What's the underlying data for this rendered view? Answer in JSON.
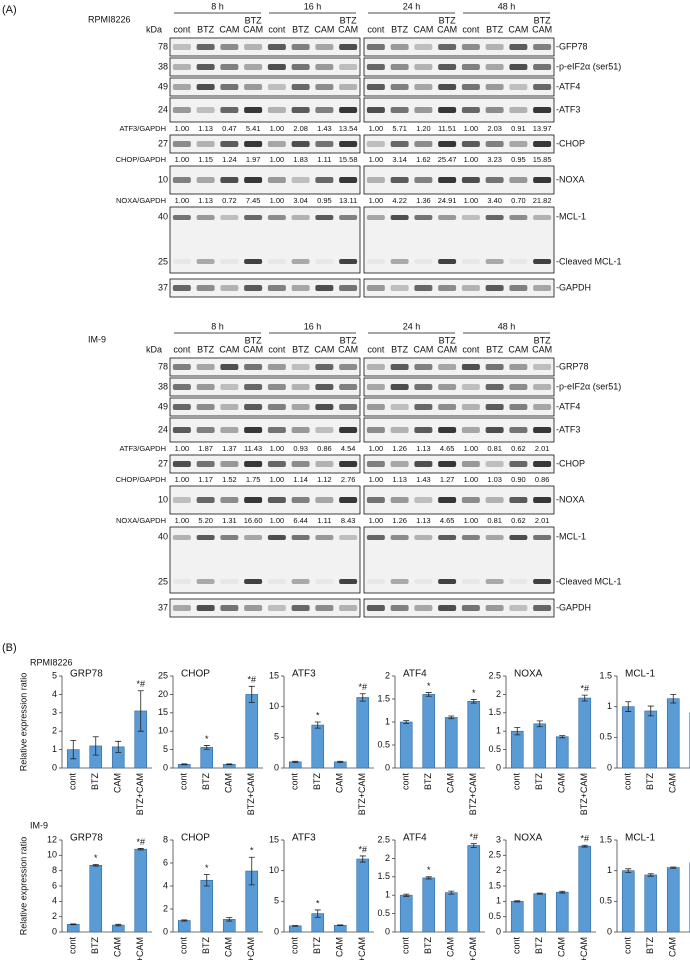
{
  "panel_a": {
    "label": "(A)",
    "kda": "kDa",
    "blocks": [
      {
        "cell_line": "RPMI8226",
        "time_points": [
          "8 h",
          "16 h",
          "24 h",
          "48 h"
        ],
        "lanes": [
          [
            "cont"
          ],
          [
            "BTZ"
          ],
          [
            "CAM"
          ],
          [
            "BTZ",
            "CAM"
          ]
        ],
        "rows": [
          {
            "markers": [
              "78"
            ],
            "labels": [
              "-GFP78"
            ]
          },
          {
            "markers": [
              "38"
            ],
            "labels": [
              "-p-eIF2α (ser51)"
            ]
          },
          {
            "markers": [
              "49"
            ],
            "labels": [
              "-ATF4"
            ]
          },
          {
            "markers": [
              "24"
            ],
            "labels": [
              "-ATF3"
            ],
            "ratio_label": "ATF3/GAPDH",
            "ratios": [
              "1.00",
              "1.13",
              "0.47",
              "5.41",
              "1.00",
              "2.08",
              "1.43",
              "13.54",
              "1.00",
              "5.71",
              "1.20",
              "11.51",
              "1.00",
              "2.03",
              "0.91",
              "13.97"
            ]
          },
          {
            "markers": [
              "27"
            ],
            "labels": [
              "-CHOP"
            ],
            "ratio_label": "CHOP/GAPDH",
            "ratios": [
              "1.00",
              "1.15",
              "1.24",
              "1.97",
              "1.00",
              "1.83",
              "1.11",
              "15.58",
              "1.00",
              "3.14",
              "1.62",
              "25.47",
              "1.00",
              "3.23",
              "0.95",
              "15.85"
            ]
          },
          {
            "markers": [
              "10"
            ],
            "labels": [
              "-NOXA"
            ],
            "ratio_label": "NOXA/GAPDH",
            "ratios": [
              "1.00",
              "1.13",
              "0.72",
              "7.45",
              "1.00",
              "3.04",
              "0.95",
              "13.11",
              "1.00",
              "4.22",
              "1.36",
              "24.91",
              "1.00",
              "3.40",
              "0.70",
              "21.82"
            ]
          },
          {
            "markers": [
              "40",
              "25"
            ],
            "labels": [
              "-MCL-1",
              "-Cleaved MCL-1"
            ]
          },
          {
            "markers": [
              "37"
            ],
            "labels": [
              "-GAPDH"
            ]
          }
        ]
      },
      {
        "cell_line": "IM-9",
        "time_points": [
          "8 h",
          "16 h",
          "24 h",
          "48 h"
        ],
        "lanes": [
          [
            "cont"
          ],
          [
            "BTZ"
          ],
          [
            "CAM"
          ],
          [
            "BTZ",
            "CAM"
          ]
        ],
        "rows": [
          {
            "markers": [
              "78"
            ],
            "labels": [
              "-GRP78"
            ]
          },
          {
            "markers": [
              "38"
            ],
            "labels": [
              "-p-eIF2α (ser51)"
            ]
          },
          {
            "markers": [
              "49"
            ],
            "labels": [
              "-ATF4"
            ]
          },
          {
            "markers": [
              "24"
            ],
            "labels": [
              "-ATF3"
            ],
            "ratio_label": "ATF3/GAPDH",
            "ratios": [
              "1.00",
              "1.87",
              "1.37",
              "11.43",
              "1.00",
              "0.93",
              "0.86",
              "4.54",
              "1.00",
              "1.26",
              "1.13",
              "4.65",
              "1.00",
              "0.81",
              "0.62",
              "2.01"
            ]
          },
          {
            "markers": [
              "27"
            ],
            "labels": [
              "-CHOP"
            ],
            "ratio_label": "CHOP/GAPDH",
            "ratios": [
              "1.00",
              "1.17",
              "1.52",
              "1.75",
              "1.00",
              "1.14",
              "1.12",
              "2.76",
              "1.00",
              "1.13",
              "1.43",
              "1.27",
              "1.00",
              "1.03",
              "0.90",
              "0.86"
            ]
          },
          {
            "markers": [
              "10"
            ],
            "labels": [
              "-NOXA"
            ],
            "ratio_label": "NOXA/GAPDH",
            "ratios": [
              "1.00",
              "5.20",
              "1.31",
              "16.60",
              "1.00",
              "6.44",
              "1.11",
              "8.43",
              "1.00",
              "1.26",
              "1.13",
              "4.65",
              "1.00",
              "0.81",
              "0.62",
              "2.01"
            ]
          },
          {
            "markers": [
              "40",
              "25"
            ],
            "labels": [
              "-MCL-1",
              "-Cleaved MCL-1"
            ]
          },
          {
            "markers": [
              "37"
            ],
            "labels": [
              "-GAPDH"
            ]
          }
        ]
      }
    ]
  },
  "panel_b": {
    "label": "(B)",
    "cell_lines": [
      "RPMI8226",
      "IM-9"
    ]
  },
  "chart_data": [
    {
      "type": "bar",
      "title": "GRP78",
      "ylabel": "Relative expression ratio",
      "categories": [
        "cont",
        "BTZ",
        "CAM",
        "BTZ+CAM"
      ],
      "values": [
        1.0,
        1.2,
        1.15,
        3.1
      ],
      "errors": [
        0.5,
        0.5,
        0.3,
        1.1
      ],
      "annotations": [
        null,
        null,
        null,
        "*#"
      ],
      "color": "#5b9bd5",
      "ylim": [
        0,
        5
      ],
      "yticks": [
        0,
        1,
        2,
        3,
        4,
        5
      ]
    },
    {
      "type": "bar",
      "title": "CHOP",
      "categories": [
        "cont",
        "BTZ",
        "CAM",
        "BTZ+CAM"
      ],
      "values": [
        1.0,
        5.6,
        1.0,
        20
      ],
      "errors": [
        0.1,
        0.5,
        0.1,
        2.2
      ],
      "annotations": [
        null,
        "*",
        null,
        "*#"
      ],
      "color": "#5b9bd5",
      "ylim": [
        0,
        25
      ],
      "yticks": [
        0,
        5,
        10,
        15,
        20,
        25
      ]
    },
    {
      "type": "bar",
      "title": "ATF3",
      "categories": [
        "cont",
        "BTZ",
        "CAM",
        "BTZ+CAM"
      ],
      "values": [
        1.0,
        7.0,
        1.0,
        11.5
      ],
      "errors": [
        0.1,
        0.5,
        0.1,
        0.6
      ],
      "annotations": [
        null,
        "*",
        null,
        "*#"
      ],
      "color": "#5b9bd5",
      "ylim": [
        0,
        15
      ],
      "yticks": [
        0,
        5,
        10,
        15
      ]
    },
    {
      "type": "bar",
      "title": "ATF4",
      "categories": [
        "cont",
        "BTZ",
        "CAM",
        "BTZ+CAM"
      ],
      "values": [
        1.0,
        1.6,
        1.1,
        1.45
      ],
      "errors": [
        0.03,
        0.04,
        0.03,
        0.04
      ],
      "annotations": [
        null,
        "*",
        null,
        "*"
      ],
      "color": "#5b9bd5",
      "ylim": [
        0,
        2
      ],
      "yticks": [
        0,
        0.5,
        1,
        1.5,
        2
      ]
    },
    {
      "type": "bar",
      "title": "NOXA",
      "categories": [
        "cont",
        "BTZ",
        "CAM",
        "BTZ+CAM"
      ],
      "values": [
        1.0,
        1.2,
        0.85,
        1.9
      ],
      "errors": [
        0.1,
        0.08,
        0.03,
        0.08
      ],
      "annotations": [
        null,
        null,
        null,
        "*#"
      ],
      "color": "#5b9bd5",
      "ylim": [
        0,
        2.5
      ],
      "yticks": [
        0,
        0.5,
        1,
        1.5,
        2,
        2.5
      ]
    },
    {
      "type": "bar",
      "title": "MCL-1",
      "categories": [
        "cont",
        "BTZ",
        "CAM",
        "BTZ+CAM"
      ],
      "values": [
        1.0,
        0.93,
        1.13,
        0.9
      ],
      "errors": [
        0.08,
        0.08,
        0.07,
        0.06
      ],
      "annotations": [
        null,
        null,
        null,
        null
      ],
      "color": "#5b9bd5",
      "ylim": [
        0,
        1.5
      ],
      "yticks": [
        0,
        0.5,
        1,
        1.5
      ]
    },
    {
      "type": "bar",
      "title": "GRP78",
      "ylabel": "Relative expression ratio",
      "categories": [
        "cont",
        "BTZ",
        "CAM",
        "BTZ+CAM"
      ],
      "values": [
        1.0,
        8.7,
        0.9,
        10.8
      ],
      "errors": [
        0.05,
        0.1,
        0.1,
        0.1
      ],
      "annotations": [
        null,
        "*",
        null,
        "*#"
      ],
      "color": "#5b9bd5",
      "ylim": [
        0,
        12
      ],
      "yticks": [
        0,
        2,
        4,
        6,
        8,
        10,
        12
      ]
    },
    {
      "type": "bar",
      "title": "CHOP",
      "categories": [
        "cont",
        "BTZ",
        "CAM",
        "BTZ+CAM"
      ],
      "values": [
        1.0,
        4.5,
        1.1,
        5.3
      ],
      "errors": [
        0.05,
        0.5,
        0.15,
        1.2
      ],
      "annotations": [
        null,
        "*",
        null,
        "*"
      ],
      "color": "#5b9bd5",
      "ylim": [
        0,
        8
      ],
      "yticks": [
        0,
        2,
        4,
        6,
        8
      ]
    },
    {
      "type": "bar",
      "title": "ATF3",
      "categories": [
        "cont",
        "BTZ",
        "CAM",
        "BTZ+CAM"
      ],
      "values": [
        1.0,
        3.0,
        1.1,
        11.9
      ],
      "errors": [
        0.05,
        0.6,
        0.05,
        0.5
      ],
      "annotations": [
        null,
        "*",
        null,
        "*#"
      ],
      "color": "#5b9bd5",
      "ylim": [
        0,
        15
      ],
      "yticks": [
        0,
        5,
        10,
        15
      ]
    },
    {
      "type": "bar",
      "title": "ATF4",
      "categories": [
        "cont",
        "BTZ",
        "CAM",
        "BTZ+CAM"
      ],
      "values": [
        1.0,
        1.47,
        1.07,
        2.35
      ],
      "errors": [
        0.03,
        0.03,
        0.04,
        0.05
      ],
      "annotations": [
        null,
        "*",
        null,
        "*#"
      ],
      "color": "#5b9bd5",
      "ylim": [
        0,
        2.5
      ],
      "yticks": [
        0,
        0.5,
        1,
        1.5,
        2,
        2.5
      ]
    },
    {
      "type": "bar",
      "title": "NOXA",
      "categories": [
        "cont",
        "BTZ",
        "CAM",
        "BTZ+CAM"
      ],
      "values": [
        1.0,
        1.25,
        1.3,
        2.8
      ],
      "errors": [
        0.02,
        0.02,
        0.03,
        0.03
      ],
      "annotations": [
        null,
        null,
        null,
        "*#"
      ],
      "color": "#5b9bd5",
      "ylim": [
        0,
        3
      ],
      "yticks": [
        0,
        0.5,
        1,
        1.5,
        2,
        2.5,
        3
      ]
    },
    {
      "type": "bar",
      "title": "MCL-1",
      "categories": [
        "cont",
        "BTZ",
        "CAM",
        "BTZ+CAM"
      ],
      "values": [
        1.0,
        0.93,
        1.05,
        1.13
      ],
      "errors": [
        0.03,
        0.02,
        0.01,
        0.04
      ],
      "annotations": [
        null,
        null,
        null,
        null
      ],
      "color": "#5b9bd5",
      "ylim": [
        0,
        1.5
      ],
      "yticks": [
        0,
        0.5,
        1,
        1.5
      ]
    }
  ]
}
